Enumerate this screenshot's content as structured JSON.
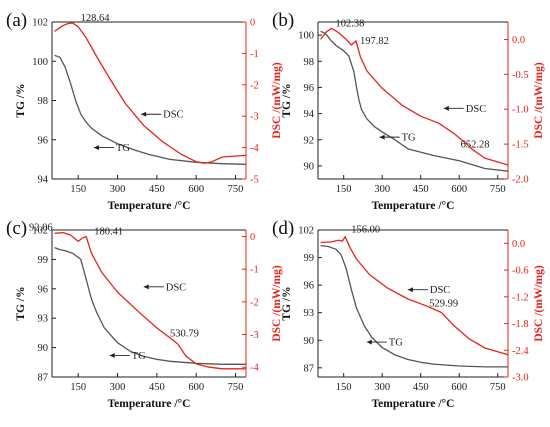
{
  "chart_data": [
    {
      "type": "line",
      "panel_label": "(a)",
      "xlabel": "Temperature /°C",
      "ylabel_left": "TG /%",
      "ylabel_right": "DSC /(mW/mg)",
      "xlim": [
        50,
        790
      ],
      "xticks": [
        "150",
        "300",
        "450",
        "600",
        "750"
      ],
      "ylim_left": [
        94,
        102
      ],
      "yticks_left": [
        "94",
        "96",
        "98",
        "100",
        "102"
      ],
      "ylim_right": [
        -5,
        0
      ],
      "yticks_right": [
        "0",
        "-1",
        "-2",
        "-3",
        "-4",
        "-5"
      ],
      "series": [
        {
          "name": "TG",
          "axis": "left",
          "color": "#555555",
          "x": [
            60,
            80,
            100,
            120,
            140,
            160,
            180,
            200,
            240,
            300,
            360,
            420,
            500,
            600,
            700,
            790
          ],
          "y": [
            100.3,
            100.2,
            99.7,
            98.9,
            98.0,
            97.3,
            96.9,
            96.6,
            96.2,
            95.8,
            95.5,
            95.25,
            95.0,
            94.85,
            94.78,
            94.75
          ]
        },
        {
          "name": "DSC",
          "axis": "right",
          "color": "#e5231b",
          "x": [
            60,
            90,
            110,
            128.64,
            150,
            180,
            220,
            270,
            330,
            400,
            470,
            540,
            600,
            630,
            660,
            700,
            790
          ],
          "y": [
            -0.3,
            -0.12,
            -0.05,
            -0.03,
            -0.15,
            -0.5,
            -1.1,
            -1.8,
            -2.6,
            -3.3,
            -3.8,
            -4.2,
            -4.45,
            -4.5,
            -4.45,
            -4.3,
            -4.25
          ]
        }
      ],
      "annotations": [
        {
          "text": "128.64",
          "x": 128.64,
          "y_right": -0.03
        },
        {
          "text": "DSC",
          "x": 390,
          "y_left": 97.3
        },
        {
          "text": "TG",
          "x": 210,
          "y_left": 95.6
        }
      ]
    },
    {
      "type": "line",
      "panel_label": "(b)",
      "xlabel": "Temperature /°C",
      "ylabel_left": "TG /%",
      "ylabel_right": "DSC /(mW/mg)",
      "xlim": [
        50,
        790
      ],
      "xticks": [
        "150",
        "300",
        "450",
        "600",
        "750"
      ],
      "ylim_left": [
        89,
        101
      ],
      "yticks_left": [
        "90",
        "92",
        "94",
        "96",
        "98",
        "100"
      ],
      "ylim_right": [
        -2.0,
        0.25
      ],
      "yticks_right": [
        "0.0",
        "-0.5",
        "-1.0",
        "-1.5",
        "-2.0"
      ],
      "series": [
        {
          "name": "TG",
          "axis": "left",
          "color": "#555555",
          "x": [
            60,
            80,
            100,
            120,
            150,
            170,
            190,
            200,
            210,
            220,
            240,
            270,
            300,
            350,
            400,
            500,
            600,
            650,
            700,
            790
          ],
          "y": [
            100.3,
            100.1,
            99.6,
            99.2,
            98.8,
            98.4,
            97.2,
            96.0,
            95.0,
            94.3,
            93.6,
            93.0,
            92.6,
            92.0,
            91.3,
            90.8,
            90.4,
            90.1,
            89.8,
            89.6
          ]
        },
        {
          "name": "DSC",
          "axis": "right",
          "color": "#e5231b",
          "x": [
            60,
            80,
            102.38,
            130,
            160,
            180,
            197.82,
            215,
            240,
            300,
            380,
            450,
            520,
            580,
            630,
            652.28,
            700,
            790
          ],
          "y": [
            0.0,
            0.1,
            0.16,
            0.1,
            0.0,
            -0.08,
            -0.02,
            -0.25,
            -0.45,
            -0.7,
            -0.95,
            -1.1,
            -1.2,
            -1.35,
            -1.5,
            -1.58,
            -1.7,
            -1.8
          ]
        }
      ],
      "annotations": [
        {
          "text": "102.38",
          "x": 102.38,
          "y_right": 0.16
        },
        {
          "text": "197.82",
          "x": 197.82,
          "y_right": -0.02
        },
        {
          "text": "DSC",
          "x": 540,
          "y_left": 94.4
        },
        {
          "text": "TG",
          "x": 290,
          "y_left": 92.2
        },
        {
          "text": "652.28",
          "x": 652.28,
          "y_right": -1.58
        }
      ]
    },
    {
      "type": "line",
      "panel_label": "(c)",
      "xlabel": "Temperature /°C",
      "ylabel_left": "TG /%",
      "ylabel_right": "DSC /(mW/mg)",
      "xlim": [
        50,
        790
      ],
      "xticks": [
        "150",
        "300",
        "450",
        "600",
        "750"
      ],
      "ylim_left": [
        87,
        102
      ],
      "yticks_left": [
        "87",
        "90",
        "93",
        "96",
        "99",
        "102"
      ],
      "ylim_right": [
        -4.3,
        0.2
      ],
      "yticks_right": [
        "0",
        "-1",
        "-2",
        "-3",
        "-4"
      ],
      "series": [
        {
          "name": "TG",
          "axis": "left",
          "color": "#555555",
          "x": [
            60,
            80,
            100,
            130,
            160,
            180,
            200,
            220,
            250,
            300,
            350,
            400,
            450,
            500,
            600,
            700,
            790
          ],
          "y": [
            100.2,
            100.0,
            99.9,
            99.6,
            99.0,
            97.0,
            95.0,
            93.6,
            92.0,
            90.5,
            89.6,
            89.1,
            88.8,
            88.6,
            88.4,
            88.3,
            88.3
          ]
        },
        {
          "name": "DSC",
          "axis": "right",
          "color": "#e5231b",
          "x": [
            60,
            92.06,
            120,
            150,
            165,
            180.41,
            200,
            240,
            300,
            380,
            450,
            500,
            530.79,
            560,
            600,
            650,
            700,
            790
          ],
          "y": [
            0.1,
            0.12,
            0.05,
            -0.15,
            -0.05,
            0.0,
            -0.5,
            -1.1,
            -1.7,
            -2.3,
            -2.8,
            -3.1,
            -3.3,
            -3.65,
            -3.9,
            -4.0,
            -4.05,
            -4.05
          ]
        }
      ],
      "annotations": [
        {
          "text": "92.06",
          "x": 92.06,
          "y_right": 0.12
        },
        {
          "text": "180.41",
          "x": 180.41,
          "y_right": 0.0
        },
        {
          "text": "DSC",
          "x": 400,
          "y_left": 96.2
        },
        {
          "text": "530.79",
          "x": 530.79,
          "y_right": -3.3
        },
        {
          "text": "TG",
          "x": 270,
          "y_left": 89.2
        }
      ]
    },
    {
      "type": "line",
      "panel_label": "(d)",
      "xlabel": "Temperature /°C",
      "ylabel_left": "TG /%",
      "ylabel_right": "DSC /(mW/mg)",
      "xlim": [
        50,
        790
      ],
      "xticks": [
        "150",
        "300",
        "450",
        "600",
        "750"
      ],
      "ylim_left": [
        86,
        102
      ],
      "yticks_left": [
        "87",
        "90",
        "93",
        "96",
        "99",
        "102"
      ],
      "ylim_right": [
        -3.0,
        0.3
      ],
      "yticks_right": [
        "0.0",
        "-0.6",
        "-1.2",
        "-1.8",
        "-2.4",
        "-3.0"
      ],
      "series": [
        {
          "name": "TG",
          "axis": "left",
          "color": "#555555",
          "x": [
            60,
            90,
            120,
            140,
            160,
            180,
            200,
            230,
            260,
            300,
            350,
            400,
            450,
            500,
            600,
            700,
            790
          ],
          "y": [
            100.3,
            100.2,
            99.9,
            99.3,
            97.8,
            95.5,
            93.5,
            91.6,
            90.3,
            89.2,
            88.4,
            87.9,
            87.6,
            87.4,
            87.2,
            87.1,
            87.1
          ]
        },
        {
          "name": "DSC",
          "axis": "right",
          "color": "#e5231b",
          "x": [
            60,
            100,
            130,
            145,
            156.0,
            175,
            200,
            250,
            320,
            400,
            470,
            529.99,
            580,
            640,
            700,
            790
          ],
          "y": [
            0.02,
            0.03,
            0.07,
            0.05,
            0.15,
            -0.1,
            -0.35,
            -0.7,
            -1.0,
            -1.25,
            -1.4,
            -1.55,
            -1.85,
            -2.15,
            -2.35,
            -2.5
          ]
        }
      ],
      "annotations": [
        {
          "text": "156.00",
          "x": 156.0,
          "y_right": 0.15
        },
        {
          "text": "DSC",
          "x": 400,
          "y_left": 95.5
        },
        {
          "text": "529.99",
          "x": 529.99,
          "y_right": -1.55
        },
        {
          "text": "TG",
          "x": 240,
          "y_left": 89.8
        }
      ]
    }
  ]
}
